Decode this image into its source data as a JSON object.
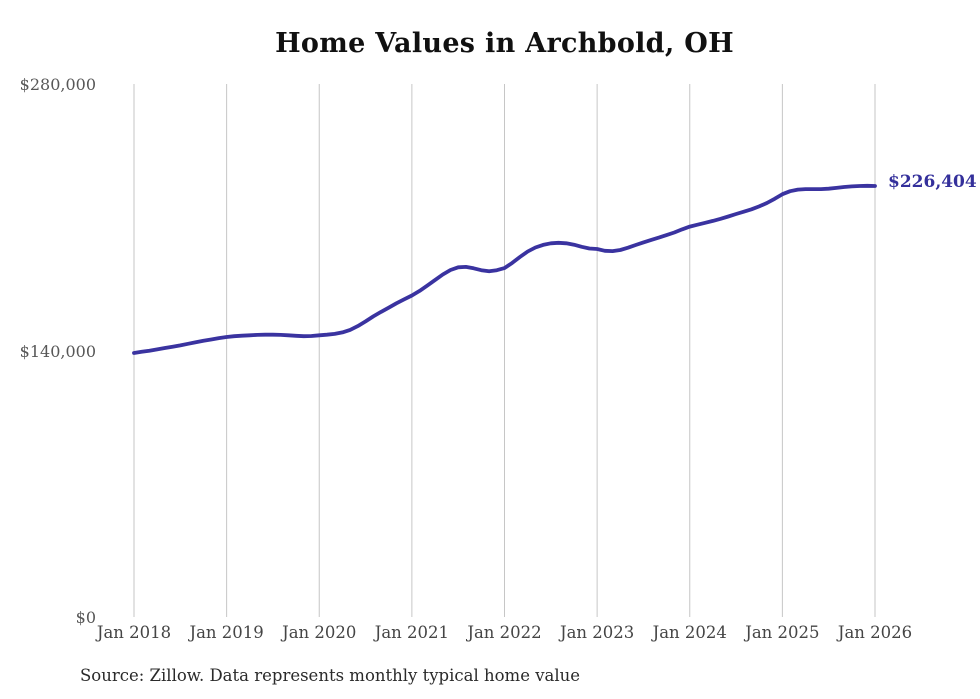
{
  "chart_data": {
    "type": "line",
    "title": "Home Values in Archbold, OH",
    "source": "Source: Zillow. Data represents monthly typical home value",
    "end_label": "$226,404",
    "latest_value": 226404,
    "x_unit": "month",
    "x_start": "Jan 2018",
    "x_end": "Jan 2026",
    "x_tick_labels": [
      "Jan 2018",
      "Jan 2019",
      "Jan 2020",
      "Jan 2021",
      "Jan 2022",
      "Jan 2023",
      "Jan 2024",
      "Jan 2025",
      "Jan 2026"
    ],
    "x_tick_month_indices": [
      0,
      12,
      24,
      36,
      48,
      60,
      72,
      84,
      96
    ],
    "y_tick_labels": [
      "$0",
      "$140,000",
      "$280,000"
    ],
    "y_tick_values": [
      0,
      140000,
      280000
    ],
    "ylim": [
      0,
      280000
    ],
    "grid": "vertical-only",
    "legend": "none",
    "line_color": "#3a33a0",
    "grid_color": "#c6c6c6",
    "series": [
      {
        "name": "Typical home value",
        "values": [
          138700,
          139300,
          139900,
          140600,
          141300,
          142000,
          142700,
          143500,
          144300,
          145100,
          145800,
          146500,
          147100,
          147500,
          147800,
          148000,
          148200,
          148300,
          148300,
          148200,
          148000,
          147700,
          147500,
          147600,
          148000,
          148300,
          148700,
          149500,
          150800,
          152800,
          155300,
          157900,
          160300,
          162500,
          164800,
          166900,
          168900,
          171300,
          174100,
          177000,
          179900,
          182300,
          183700,
          183900,
          183200,
          182200,
          181600,
          182200,
          183300,
          186000,
          189100,
          192000,
          194100,
          195500,
          196300,
          196600,
          196300,
          195600,
          194500,
          193600,
          193300,
          192400,
          192200,
          192800,
          194000,
          195400,
          196800,
          198100,
          199300,
          200600,
          202000,
          203600,
          205100,
          206100,
          207100,
          208100,
          209200,
          210400,
          211700,
          212900,
          214200,
          215700,
          217500,
          219700,
          222100,
          223700,
          224500,
          224800,
          224800,
          224800,
          225000,
          225400,
          225900,
          226200,
          226400,
          226500,
          226404
        ]
      }
    ]
  }
}
